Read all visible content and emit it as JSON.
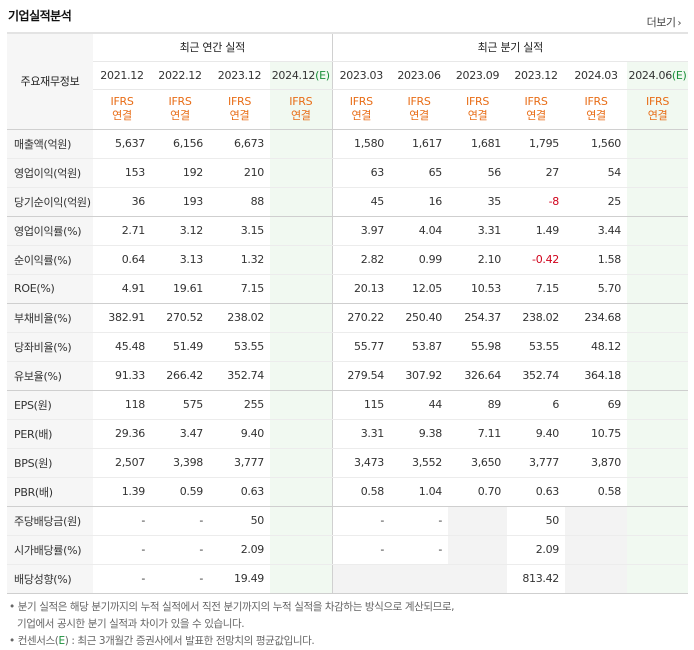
{
  "header": {
    "title": "기업실적분석",
    "more_label": "더보기",
    "more_icon": "chevron-right-icon"
  },
  "table": {
    "row_header_label": "주요재무정보",
    "annual_group_label": "최근 연간 실적",
    "quarter_group_label": "최근 분기 실적",
    "annual_periods": [
      {
        "label": "2021.12",
        "est": ""
      },
      {
        "label": "2022.12",
        "est": ""
      },
      {
        "label": "2023.12",
        "est": ""
      },
      {
        "label": "2024.12",
        "est": "(E)"
      }
    ],
    "quarter_periods": [
      {
        "label": "2023.03",
        "est": ""
      },
      {
        "label": "2023.06",
        "est": ""
      },
      {
        "label": "2023.09",
        "est": ""
      },
      {
        "label": "2023.12",
        "est": ""
      },
      {
        "label": "2024.03",
        "est": ""
      },
      {
        "label": "2024.06",
        "est": "(E)"
      }
    ],
    "basis_line1": "IFRS",
    "basis_line2": "연결",
    "rows": [
      {
        "label": "매출액(억원)",
        "annual": [
          "5,637",
          "6,156",
          "6,673",
          ""
        ],
        "quarter": [
          "1,580",
          "1,617",
          "1,681",
          "1,795",
          "1,560",
          ""
        ]
      },
      {
        "label": "영업이익(억원)",
        "annual": [
          "153",
          "192",
          "210",
          ""
        ],
        "quarter": [
          "63",
          "65",
          "56",
          "27",
          "54",
          ""
        ]
      },
      {
        "label": "당기순이익(억원)",
        "annual": [
          "36",
          "193",
          "88",
          ""
        ],
        "quarter": [
          "45",
          "16",
          "35",
          "-8",
          "25",
          ""
        ]
      },
      {
        "label": "영업이익률(%)",
        "annual": [
          "2.71",
          "3.12",
          "3.15",
          ""
        ],
        "quarter": [
          "3.97",
          "4.04",
          "3.31",
          "1.49",
          "3.44",
          ""
        ]
      },
      {
        "label": "순이익률(%)",
        "annual": [
          "0.64",
          "3.13",
          "1.32",
          ""
        ],
        "quarter": [
          "2.82",
          "0.99",
          "2.10",
          "-0.42",
          "1.58",
          ""
        ]
      },
      {
        "label": "ROE(%)",
        "annual": [
          "4.91",
          "19.61",
          "7.15",
          ""
        ],
        "quarter": [
          "20.13",
          "12.05",
          "10.53",
          "7.15",
          "5.70",
          ""
        ]
      },
      {
        "label": "부채비율(%)",
        "annual": [
          "382.91",
          "270.52",
          "238.02",
          ""
        ],
        "quarter": [
          "270.22",
          "250.40",
          "254.37",
          "238.02",
          "234.68",
          ""
        ]
      },
      {
        "label": "당좌비율(%)",
        "annual": [
          "45.48",
          "51.49",
          "53.55",
          ""
        ],
        "quarter": [
          "55.77",
          "53.87",
          "55.98",
          "53.55",
          "48.12",
          ""
        ]
      },
      {
        "label": "유보율(%)",
        "annual": [
          "91.33",
          "266.42",
          "352.74",
          ""
        ],
        "quarter": [
          "279.54",
          "307.92",
          "326.64",
          "352.74",
          "364.18",
          ""
        ]
      },
      {
        "label": "EPS(원)",
        "annual": [
          "118",
          "575",
          "255",
          ""
        ],
        "quarter": [
          "115",
          "44",
          "89",
          "6",
          "69",
          ""
        ]
      },
      {
        "label": "PER(배)",
        "annual": [
          "29.36",
          "3.47",
          "9.40",
          ""
        ],
        "quarter": [
          "3.31",
          "9.38",
          "7.11",
          "9.40",
          "10.75",
          ""
        ]
      },
      {
        "label": "BPS(원)",
        "annual": [
          "2,507",
          "3,398",
          "3,777",
          ""
        ],
        "quarter": [
          "3,473",
          "3,552",
          "3,650",
          "3,777",
          "3,870",
          ""
        ]
      },
      {
        "label": "PBR(배)",
        "annual": [
          "1.39",
          "0.59",
          "0.63",
          ""
        ],
        "quarter": [
          "0.58",
          "1.04",
          "0.70",
          "0.63",
          "0.58",
          ""
        ]
      },
      {
        "label": "주당배당금(원)",
        "annual": [
          "-",
          "-",
          "50",
          ""
        ],
        "quarter": [
          "-",
          "-",
          "",
          "50",
          "",
          ""
        ]
      },
      {
        "label": "시가배당률(%)",
        "annual": [
          "-",
          "-",
          "2.09",
          ""
        ],
        "quarter": [
          "-",
          "-",
          "",
          "2.09",
          "",
          ""
        ]
      },
      {
        "label": "배당성향(%)",
        "annual": [
          "-",
          "-",
          "19.49",
          ""
        ],
        "quarter": [
          "",
          "",
          "",
          "813.42",
          "",
          ""
        ]
      }
    ]
  },
  "notes": {
    "line1": "분기 실적은 해당 분기까지의 누적 실적에서 직전 분기까지의 누적 실적을 차감하는 방식으로 계산되므로,",
    "line2": "기업에서 공시한 분기 실적과 차이가 있을 수 있습니다.",
    "line3_prefix": "컨센서스(",
    "line3_e": "E",
    "line3_suffix": ") : 최근 3개월간 증권사에서 발표한 전망치의 평균값입니다."
  },
  "colors": {
    "ifrs": "#e86d17",
    "estimate_text": "#1a8f3a",
    "estimate_bg": "#f1f9f1",
    "negative": "#d0021b"
  }
}
